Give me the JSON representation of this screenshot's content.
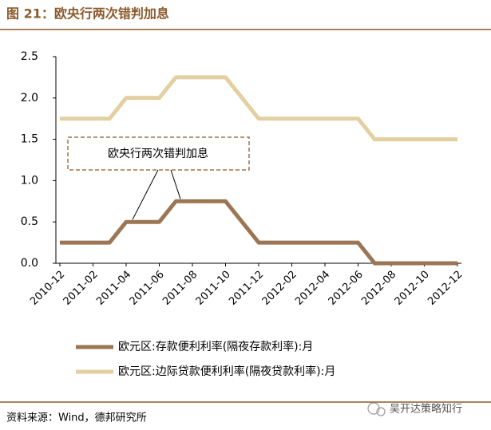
{
  "chart_data": {
    "type": "line",
    "title": "图 21：欧央行两次错判加息",
    "categories": [
      "2010-12",
      null,
      "2011-02",
      null,
      "2011-04",
      null,
      "2011-06",
      null,
      "2011-08",
      null,
      "2011-10",
      null,
      "2011-12",
      null,
      "2012-02",
      null,
      "2012-04",
      null,
      "2012-06",
      null,
      "2012-08",
      null,
      "2012-10",
      null,
      "2012-12"
    ],
    "series": [
      {
        "name": "欧元区:存款便利利率(隔夜存款利率):月",
        "color": "#9c7654",
        "values": [
          0.25,
          0.25,
          0.25,
          0.25,
          0.5,
          0.5,
          0.5,
          0.75,
          0.75,
          0.75,
          0.75,
          0.5,
          0.25,
          0.25,
          0.25,
          0.25,
          0.25,
          0.25,
          0.25,
          0,
          0,
          0,
          0,
          0,
          0
        ]
      },
      {
        "name": "欧元区:边际贷款便利利率(隔夜贷款利率):月",
        "color": "#e2d0a2",
        "values": [
          1.75,
          1.75,
          1.75,
          1.75,
          2.0,
          2.0,
          2.0,
          2.25,
          2.25,
          2.25,
          2.25,
          2.0,
          1.75,
          1.75,
          1.75,
          1.75,
          1.75,
          1.75,
          1.75,
          1.5,
          1.5,
          1.5,
          1.5,
          1.5,
          1.5
        ]
      }
    ],
    "ylim": [
      0,
      2.5
    ],
    "yticks": [
      {
        "value": 0,
        "label": "0.0"
      },
      0.5,
      {
        "value": 1,
        "label": "1.0"
      },
      1.5,
      {
        "value": 2,
        "label": "2.0"
      },
      2.5
    ],
    "annotation": "欧央行两次错判加息",
    "source": "资料来源：Wind，德邦研究所",
    "watermark": "吴开达策略知行"
  }
}
